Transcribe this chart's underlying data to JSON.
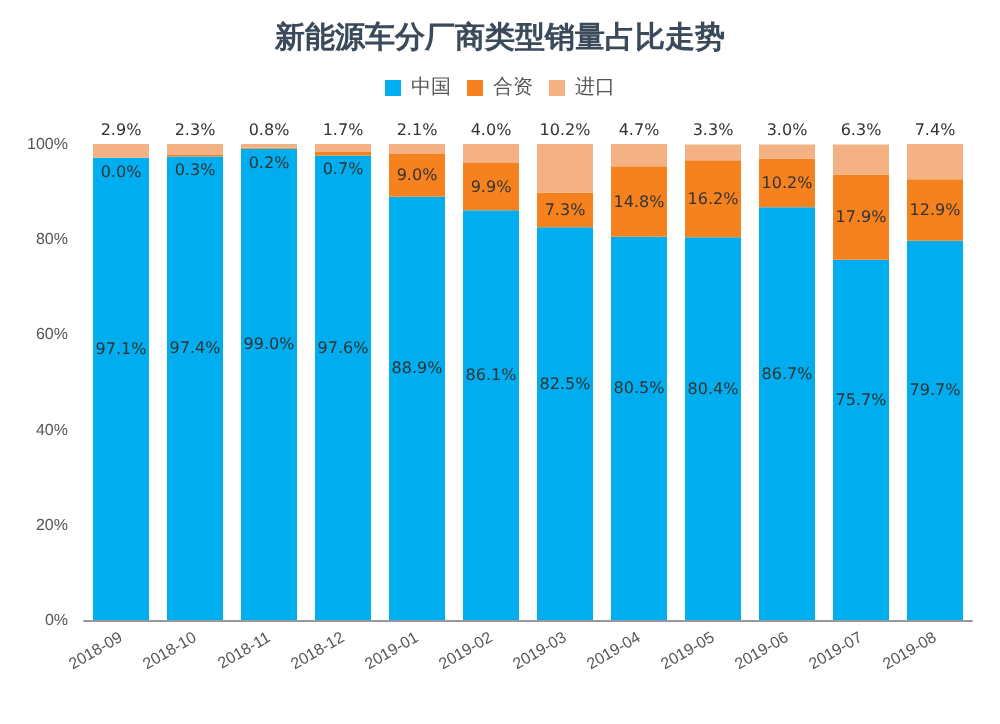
{
  "chart_data": {
    "type": "bar",
    "title": "新能源车分厂商类型销量占比走势",
    "stacked": true,
    "categories": [
      "2018-09",
      "2018-10",
      "2018-11",
      "2018-12",
      "2019-01",
      "2019-02",
      "2019-03",
      "2019-04",
      "2019-05",
      "2019-06",
      "2019-07",
      "2019-08"
    ],
    "series": [
      {
        "name": "中国",
        "color": "#00aeef",
        "values": [
          97.1,
          97.4,
          99.0,
          97.6,
          88.9,
          86.1,
          82.5,
          80.5,
          80.4,
          86.7,
          75.7,
          79.7
        ],
        "value_labels": [
          "97.1%",
          "97.4%",
          "99.0%",
          "97.6%",
          "88.9%",
          "86.1%",
          "82.5%",
          "80.5%",
          "80.4%",
          "86.7%",
          "75.7%",
          "79.7%"
        ]
      },
      {
        "name": "合资",
        "color": "#f5821f",
        "values": [
          0.0,
          0.3,
          0.2,
          0.7,
          9.0,
          9.9,
          7.3,
          14.8,
          16.2,
          10.2,
          17.9,
          12.9
        ],
        "value_labels": [
          "0.0%",
          "0.3%",
          "0.2%",
          "0.7%",
          "9.0%",
          "9.9%",
          "7.3%",
          "14.8%",
          "16.2%",
          "10.2%",
          "17.9%",
          "12.9%"
        ]
      },
      {
        "name": "进口",
        "color": "#f4b183",
        "values": [
          2.9,
          2.3,
          0.8,
          1.7,
          2.1,
          4.0,
          10.2,
          4.7,
          3.3,
          3.0,
          6.3,
          7.4
        ],
        "value_labels": [
          "2.9%",
          "2.3%",
          "0.8%",
          "1.7%",
          "2.1%",
          "4.0%",
          "10.2%",
          "4.7%",
          "3.3%",
          "3.0%",
          "6.3%",
          "7.4%"
        ]
      }
    ],
    "ylim": [
      0,
      100
    ],
    "yticks": [
      {
        "value": 0,
        "label": "0%"
      },
      {
        "value": 20,
        "label": "20%"
      },
      {
        "value": 40,
        "label": "40%"
      },
      {
        "value": 60,
        "label": "60%"
      },
      {
        "value": 80,
        "label": "80%"
      },
      {
        "value": 100,
        "label": "100%"
      }
    ],
    "grid": false,
    "legend": "top"
  }
}
